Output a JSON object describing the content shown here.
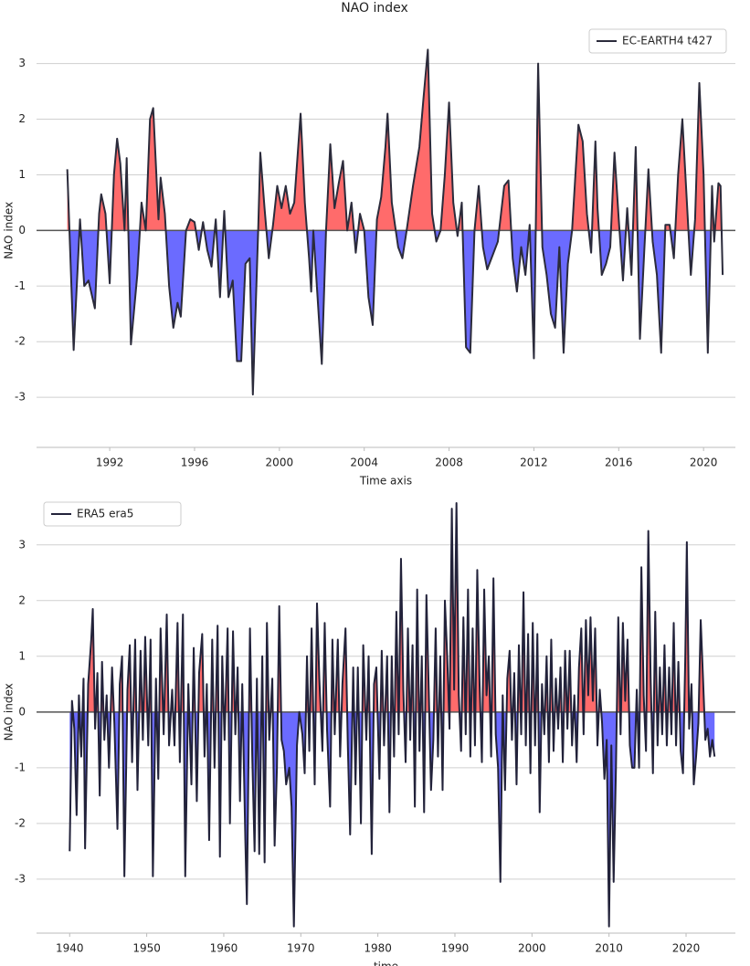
{
  "chart_data": [
    {
      "type": "line",
      "title": "NAO index",
      "x_label": "Time axis",
      "y_label": "NAO index",
      "legend": "upper right",
      "grid": true,
      "fill_positive_color": "#ff6b6b",
      "fill_negative_color": "#6b6bff",
      "xlim": [
        1988.55,
        2021.5
      ],
      "xticks": [
        1992,
        1996,
        2000,
        2004,
        2008,
        2012,
        2016,
        2020
      ],
      "ylim": [
        -3.9,
        3.65
      ],
      "yticks": [
        -3,
        -2,
        -1,
        0,
        1,
        2,
        3
      ],
      "x": [
        1990.0,
        1990.3,
        1990.6,
        1990.8,
        1991.0,
        1991.3,
        1991.5,
        1991.6,
        1991.8,
        1992.0,
        1992.2,
        1992.35,
        1992.5,
        1992.7,
        1992.8,
        1993.0,
        1993.3,
        1993.5,
        1993.7,
        1993.9,
        1994.05,
        1994.3,
        1994.4,
        1994.6,
        1994.8,
        1995.0,
        1995.2,
        1995.35,
        1995.6,
        1995.8,
        1996.0,
        1996.2,
        1996.4,
        1996.6,
        1996.8,
        1997.0,
        1997.2,
        1997.4,
        1997.6,
        1997.8,
        1998.0,
        1998.2,
        1998.4,
        1998.6,
        1998.75,
        1999.0,
        1999.1,
        1999.3,
        1999.5,
        1999.7,
        1999.9,
        2000.1,
        2000.3,
        2000.5,
        2000.7,
        2001.0,
        2001.2,
        2001.4,
        2001.5,
        2001.6,
        2002.0,
        2002.2,
        2002.4,
        2002.6,
        2002.8,
        2003.0,
        2003.2,
        2003.4,
        2003.6,
        2003.8,
        2004.0,
        2004.2,
        2004.4,
        2004.6,
        2004.8,
        2005.0,
        2005.1,
        2005.3,
        2005.6,
        2005.8,
        2006.0,
        2006.3,
        2006.6,
        2006.8,
        2007.0,
        2007.2,
        2007.4,
        2007.6,
        2007.8,
        2008.0,
        2008.2,
        2008.4,
        2008.6,
        2008.8,
        2009.0,
        2009.2,
        2009.4,
        2009.6,
        2009.8,
        2010.0,
        2010.3,
        2010.6,
        2010.8,
        2011.0,
        2011.2,
        2011.4,
        2011.6,
        2011.8,
        2012.0,
        2012.2,
        2012.4,
        2012.6,
        2012.8,
        2013.0,
        2013.2,
        2013.4,
        2013.6,
        2013.8,
        2014.1,
        2014.3,
        2014.5,
        2014.7,
        2014.9,
        2015.0,
        2015.2,
        2015.4,
        2015.6,
        2015.8,
        2016.0,
        2016.2,
        2016.4,
        2016.6,
        2016.8,
        2017.0,
        2017.2,
        2017.4,
        2017.6,
        2017.8,
        2018.0,
        2018.2,
        2018.4,
        2018.6,
        2018.8,
        2019.0,
        2019.2,
        2019.4,
        2019.6,
        2019.8,
        2020.0,
        2020.2,
        2020.4,
        2020.5,
        2020.7,
        2020.8,
        2020.9
      ],
      "series": [
        {
          "name": "EC-EARTH4 t427",
          "color": "#2b2b3b",
          "values": [
            1.1,
            -2.15,
            0.2,
            -1.0,
            -0.9,
            -1.4,
            0.3,
            0.65,
            0.3,
            -0.95,
            1.0,
            1.65,
            1.2,
            0.0,
            1.3,
            -2.05,
            -0.8,
            0.5,
            0.0,
            2.0,
            2.2,
            0.2,
            0.95,
            0.3,
            -1.0,
            -1.75,
            -1.3,
            -1.55,
            0.0,
            0.2,
            0.15,
            -0.35,
            0.15,
            -0.35,
            -0.65,
            0.2,
            -1.2,
            0.35,
            -1.2,
            -0.9,
            -2.35,
            -2.35,
            -0.6,
            -0.5,
            -2.95,
            0.0,
            1.4,
            0.4,
            -0.5,
            0.1,
            0.8,
            0.4,
            0.8,
            0.3,
            0.5,
            2.1,
            0.5,
            -0.5,
            -1.1,
            0.0,
            -2.4,
            0.0,
            1.55,
            0.4,
            0.85,
            1.25,
            0.0,
            0.5,
            -0.4,
            0.3,
            0.0,
            -1.2,
            -1.7,
            0.2,
            0.6,
            1.5,
            2.1,
            0.5,
            -0.3,
            -0.5,
            0.0,
            0.8,
            1.5,
            2.4,
            3.25,
            0.3,
            -0.2,
            0.0,
            1.0,
            2.3,
            0.5,
            -0.1,
            0.5,
            -2.1,
            -2.2,
            0.0,
            0.8,
            -0.3,
            -0.7,
            -0.5,
            -0.2,
            0.8,
            0.9,
            -0.5,
            -1.1,
            -0.3,
            -0.8,
            0.1,
            -2.3,
            3.0,
            -0.3,
            -0.8,
            -1.5,
            -1.75,
            -0.3,
            -2.2,
            -0.6,
            0.0,
            1.9,
            1.6,
            0.3,
            -0.4,
            1.6,
            0.4,
            -0.8,
            -0.6,
            -0.3,
            1.4,
            0.2,
            -0.9,
            0.4,
            -0.8,
            1.5,
            -1.95,
            -0.4,
            1.1,
            -0.2,
            -0.8,
            -2.2,
            0.1,
            0.1,
            -0.5,
            1.0,
            2.0,
            0.6,
            -0.8,
            0.2,
            2.65,
            1.0,
            -2.2,
            0.8,
            -0.2,
            0.85,
            0.8,
            -0.8
          ]
        }
      ]
    },
    {
      "type": "line",
      "x_label": "time",
      "y_label": "NAO index",
      "legend": "upper left",
      "grid": true,
      "fill_positive_color": "#ff6b6b",
      "fill_negative_color": "#6b6bff",
      "xlim": [
        1935.7,
        2026.4
      ],
      "xticks": [
        1940,
        1950,
        1960,
        1970,
        1980,
        1990,
        2000,
        2010,
        2020
      ],
      "ylim": [
        -3.97,
        3.8
      ],
      "yticks": [
        -3,
        -2,
        -1,
        0,
        1,
        2,
        3
      ],
      "x": [
        1940.0,
        1940.3,
        1940.6,
        1940.9,
        1941.2,
        1941.5,
        1941.8,
        1942.0,
        1942.4,
        1942.8,
        1943.0,
        1943.3,
        1943.6,
        1943.9,
        1944.2,
        1944.5,
        1944.8,
        1945.1,
        1945.5,
        1945.8,
        1946.2,
        1946.5,
        1946.8,
        1947.1,
        1947.5,
        1947.8,
        1948.1,
        1948.5,
        1948.8,
        1949.2,
        1949.5,
        1949.8,
        1950.2,
        1950.5,
        1950.8,
        1951.2,
        1951.5,
        1951.8,
        1952.2,
        1952.6,
        1952.9,
        1953.3,
        1953.6,
        1954.0,
        1954.3,
        1954.7,
        1955.0,
        1955.4,
        1955.8,
        1956.1,
        1956.5,
        1956.8,
        1957.2,
        1957.5,
        1957.8,
        1958.1,
        1958.5,
        1958.8,
        1959.2,
        1959.5,
        1959.8,
        1960.1,
        1960.5,
        1960.8,
        1961.2,
        1961.5,
        1961.8,
        1962.1,
        1962.4,
        1962.8,
        1963.0,
        1963.4,
        1963.7,
        1964.0,
        1964.3,
        1964.6,
        1965.0,
        1965.3,
        1965.6,
        1965.9,
        1966.3,
        1966.6,
        1966.9,
        1967.2,
        1967.5,
        1967.8,
        1968.1,
        1968.5,
        1968.8,
        1969.1,
        1969.5,
        1969.8,
        1970.2,
        1970.5,
        1970.8,
        1971.1,
        1971.4,
        1971.8,
        1972.1,
        1972.4,
        1972.8,
        1973.1,
        1973.4,
        1973.8,
        1974.1,
        1974.4,
        1974.8,
        1975.1,
        1975.4,
        1975.8,
        1976.1,
        1976.4,
        1976.8,
        1977.1,
        1977.4,
        1977.8,
        1978.1,
        1978.5,
        1978.8,
        1979.2,
        1979.5,
        1979.8,
        1980.2,
        1980.5,
        1980.8,
        1981.2,
        1981.5,
        1981.8,
        1982.1,
        1982.4,
        1982.7,
        1983.0,
        1983.3,
        1983.6,
        1983.9,
        1984.2,
        1984.5,
        1984.8,
        1985.1,
        1985.4,
        1985.7,
        1986.0,
        1986.3,
        1986.6,
        1986.9,
        1987.2,
        1987.5,
        1987.8,
        1988.1,
        1988.4,
        1988.7,
        1989.0,
        1989.3,
        1989.6,
        1989.9,
        1990.2,
        1990.5,
        1990.8,
        1991.1,
        1991.4,
        1991.7,
        1992.0,
        1992.3,
        1992.6,
        1992.9,
        1993.2,
        1993.5,
        1993.8,
        1994.1,
        1994.4,
        1994.7,
        1995.0,
        1995.3,
        1995.6,
        1995.9,
        1996.2,
        1996.5,
        1996.8,
        1997.1,
        1997.4,
        1997.7,
        1998.0,
        1998.3,
        1998.6,
        1998.9,
        1999.2,
        1999.5,
        1999.8,
        2000.1,
        2000.4,
        2000.7,
        2001.0,
        2001.3,
        2001.6,
        2001.9,
        2002.2,
        2002.5,
        2002.8,
        2003.1,
        2003.4,
        2003.7,
        2004.0,
        2004.3,
        2004.6,
        2004.9,
        2005.2,
        2005.5,
        2005.8,
        2006.1,
        2006.4,
        2006.7,
        2007.0,
        2007.3,
        2007.6,
        2007.9,
        2008.2,
        2008.5,
        2008.8,
        2009.1,
        2009.4,
        2009.7,
        2010.0,
        2010.3,
        2010.6,
        2010.9,
        2011.2,
        2011.5,
        2011.8,
        2012.1,
        2012.4,
        2012.7,
        2013.0,
        2013.3,
        2013.6,
        2013.9,
        2014.2,
        2014.5,
        2014.8,
        2015.1,
        2015.4,
        2015.7,
        2016.0,
        2016.3,
        2016.6,
        2016.9,
        2017.2,
        2017.5,
        2017.8,
        2018.1,
        2018.4,
        2018.7,
        2019.0,
        2019.3,
        2019.6,
        2019.9,
        2020.1,
        2020.4,
        2020.7,
        2021.0,
        2021.3,
        2021.6,
        2021.9,
        2022.2,
        2022.5,
        2022.8,
        2023.1,
        2023.4,
        2023.7
      ],
      "series": [
        {
          "name": "ERA5 era5",
          "color": "#22223a",
          "values": [
            -2.5,
            0.2,
            -0.3,
            -1.85,
            0.3,
            -0.8,
            0.6,
            -2.45,
            0.5,
            1.3,
            1.85,
            -0.3,
            0.7,
            -1.5,
            0.9,
            -0.5,
            0.3,
            -1.0,
            0.8,
            -0.2,
            -2.1,
            0.5,
            1.0,
            -2.95,
            0.4,
            1.2,
            -0.9,
            1.3,
            -1.4,
            1.1,
            -0.5,
            1.35,
            -0.6,
            1.3,
            -2.95,
            0.6,
            -1.2,
            1.5,
            -0.4,
            1.75,
            -0.6,
            0.4,
            -0.6,
            1.6,
            -0.9,
            1.75,
            -2.95,
            0.5,
            -1.3,
            1.15,
            -1.6,
            0.7,
            1.4,
            -0.8,
            0.5,
            -2.3,
            1.3,
            -1.0,
            1.55,
            -2.6,
            1.0,
            -0.5,
            1.5,
            -2.0,
            1.45,
            -0.4,
            0.8,
            -1.6,
            0.5,
            -2.3,
            -3.45,
            1.5,
            -0.8,
            -2.5,
            0.6,
            -2.55,
            1.0,
            -2.7,
            1.6,
            -0.5,
            0.6,
            -2.4,
            -1.0,
            1.9,
            -0.5,
            -0.7,
            -1.3,
            -1.0,
            -1.7,
            -3.85,
            -0.6,
            0.0,
            -0.4,
            -1.1,
            1.0,
            -0.7,
            1.5,
            -1.3,
            1.95,
            0.6,
            -0.7,
            1.6,
            -0.3,
            -1.7,
            1.3,
            -0.4,
            1.3,
            -0.8,
            0.5,
            1.5,
            -0.6,
            -2.2,
            0.8,
            -1.3,
            0.8,
            -2.0,
            1.2,
            -0.5,
            1.0,
            -2.55,
            0.5,
            0.8,
            -1.2,
            1.1,
            -0.6,
            1.0,
            -1.8,
            1.0,
            -0.8,
            1.8,
            -0.4,
            2.75,
            0.4,
            -0.9,
            1.5,
            -0.5,
            1.2,
            -1.7,
            2.2,
            -0.7,
            1.0,
            -1.8,
            2.1,
            0.4,
            -1.4,
            -0.5,
            1.5,
            -0.8,
            1.0,
            -1.4,
            2.0,
            1.0,
            -0.3,
            3.65,
            0.4,
            3.75,
            0.3,
            -0.7,
            1.7,
            -0.4,
            2.2,
            -0.8,
            1.5,
            -0.6,
            2.55,
            0.5,
            -0.9,
            2.2,
            0.3,
            1.0,
            -0.8,
            2.4,
            -0.4,
            -1.0,
            -3.05,
            0.3,
            -1.4,
            0.6,
            1.1,
            -0.5,
            0.7,
            -1.3,
            1.2,
            -0.4,
            2.15,
            -0.6,
            1.4,
            -1.1,
            1.6,
            -0.6,
            1.4,
            -1.8,
            0.5,
            -0.4,
            1.0,
            -0.9,
            1.3,
            -0.7,
            0.6,
            -0.3,
            0.8,
            -0.9,
            1.1,
            -0.3,
            1.1,
            -0.6,
            0.3,
            -0.9,
            0.8,
            1.5,
            -0.4,
            1.65,
            0.3,
            1.7,
            0.2,
            1.5,
            -0.6,
            0.4,
            -0.2,
            -1.2,
            -0.5,
            -3.85,
            -0.6,
            -3.05,
            -1.0,
            1.7,
            -0.4,
            1.6,
            0.2,
            1.3,
            -0.6,
            -1.0,
            -1.0,
            0.4,
            -1.0,
            2.6,
            0.3,
            -0.7,
            3.25,
            0.6,
            -1.1,
            1.8,
            -0.6,
            0.8,
            -0.4,
            1.2,
            -0.6,
            0.8,
            -0.4,
            1.6,
            -0.6,
            0.9,
            -0.7,
            -1.1,
            1.0,
            3.05,
            -0.3,
            0.5,
            -1.3,
            -0.8,
            -0.2,
            1.65,
            0.6,
            -0.5,
            -0.3,
            -0.8,
            -0.5,
            -0.8
          ]
        }
      ]
    }
  ]
}
